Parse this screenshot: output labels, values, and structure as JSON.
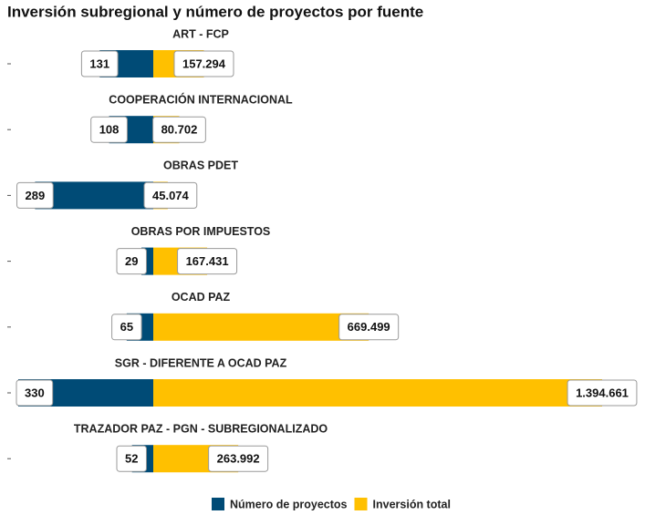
{
  "chart_data": {
    "type": "butterfly",
    "title": "Inversión subregional y número de proyectos por fuente",
    "categories": [
      "ART - FCP",
      "COOPERACIÓN INTERNACIONAL",
      "OBRAS PDET",
      "OBRAS POR IMPUESTOS",
      "OCAD PAZ",
      "SGR - DIFERENTE A OCAD PAZ",
      "TRAZADOR PAZ - PGN - SUBREGIONALIZADO"
    ],
    "series": [
      {
        "name": "Número de proyectos",
        "color": "#004b76",
        "side": "left",
        "values": [
          131,
          108,
          289,
          29,
          65,
          330,
          52
        ]
      },
      {
        "name": "Inversión total",
        "color": "#ffc000",
        "side": "right",
        "values": [
          157294,
          80702,
          45074,
          167431,
          669499,
          1394661,
          263992
        ],
        "value_labels": [
          "157.294",
          "80.702",
          "45.074",
          "167.431",
          "669.499",
          "1.394.661",
          "263.992"
        ]
      }
    ],
    "legend": "bottom"
  }
}
